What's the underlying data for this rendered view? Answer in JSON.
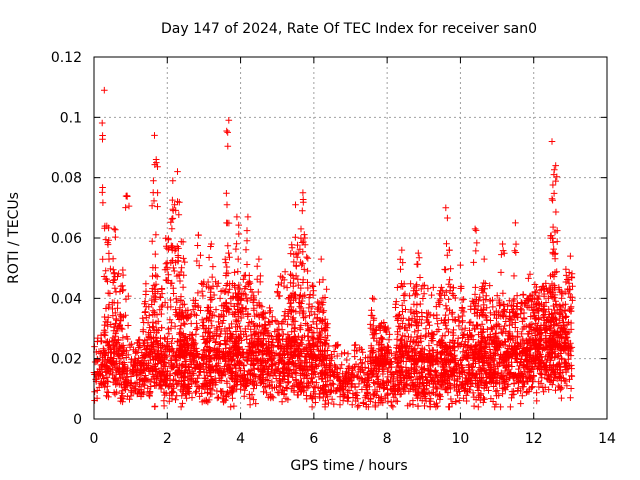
{
  "chart_data": {
    "type": "scatter",
    "title": "Day 147 of 2024, Rate Of TEC Index for receiver san0",
    "xlabel": "GPS time / hours",
    "ylabel": "ROTI / TECUs",
    "xlim": [
      0,
      14
    ],
    "ylim": [
      0,
      0.12
    ],
    "xticks": [
      "0",
      "2",
      "4",
      "6",
      "8",
      "10",
      "12",
      "14"
    ],
    "yticks": [
      "0",
      "0.02",
      "0.04",
      "0.06",
      "0.08",
      "0.1",
      "0.12"
    ],
    "grid": true,
    "marker": "+",
    "color": "#ff0000",
    "data_range_hours": [
      0,
      13.05
    ],
    "baseline_profile": [
      [
        0.0,
        0.015
      ],
      [
        0.5,
        0.016
      ],
      [
        1.0,
        0.014
      ],
      [
        1.5,
        0.015
      ],
      [
        2.0,
        0.014
      ],
      [
        2.5,
        0.015
      ],
      [
        3.0,
        0.014
      ],
      [
        3.5,
        0.014
      ],
      [
        4.0,
        0.015
      ],
      [
        4.5,
        0.016
      ],
      [
        5.0,
        0.015
      ],
      [
        5.5,
        0.015
      ],
      [
        6.0,
        0.014
      ],
      [
        6.5,
        0.013
      ],
      [
        7.0,
        0.012
      ],
      [
        7.5,
        0.012
      ],
      [
        8.0,
        0.012
      ],
      [
        8.5,
        0.013
      ],
      [
        9.0,
        0.013
      ],
      [
        9.5,
        0.013
      ],
      [
        10.0,
        0.014
      ],
      [
        10.5,
        0.014
      ],
      [
        11.0,
        0.014
      ],
      [
        11.5,
        0.015
      ],
      [
        12.0,
        0.017
      ],
      [
        12.5,
        0.018
      ],
      [
        13.05,
        0.017
      ]
    ],
    "peaks": [
      {
        "x": 0.28,
        "y": 0.109
      },
      {
        "x": 0.35,
        "y": 0.064
      },
      {
        "x": 0.55,
        "y": 0.063
      },
      {
        "x": 0.9,
        "y": 0.074
      },
      {
        "x": 1.65,
        "y": 0.094
      },
      {
        "x": 1.7,
        "y": 0.085
      },
      {
        "x": 1.62,
        "y": 0.079
      },
      {
        "x": 2.15,
        "y": 0.079
      },
      {
        "x": 2.28,
        "y": 0.082
      },
      {
        "x": 2.2,
        "y": 0.071
      },
      {
        "x": 2.85,
        "y": 0.061
      },
      {
        "x": 3.2,
        "y": 0.058
      },
      {
        "x": 3.68,
        "y": 0.099
      },
      {
        "x": 3.65,
        "y": 0.095
      },
      {
        "x": 3.62,
        "y": 0.065
      },
      {
        "x": 3.9,
        "y": 0.067
      },
      {
        "x": 4.2,
        "y": 0.067
      },
      {
        "x": 4.5,
        "y": 0.053
      },
      {
        "x": 5.5,
        "y": 0.071
      },
      {
        "x": 5.7,
        "y": 0.075
      },
      {
        "x": 5.65,
        "y": 0.063
      },
      {
        "x": 6.2,
        "y": 0.053
      },
      {
        "x": 7.6,
        "y": 0.04
      },
      {
        "x": 8.4,
        "y": 0.056
      },
      {
        "x": 8.85,
        "y": 0.055
      },
      {
        "x": 9.6,
        "y": 0.07
      },
      {
        "x": 9.7,
        "y": 0.056
      },
      {
        "x": 10.0,
        "y": 0.051
      },
      {
        "x": 10.4,
        "y": 0.063
      },
      {
        "x": 10.65,
        "y": 0.053
      },
      {
        "x": 11.15,
        "y": 0.058
      },
      {
        "x": 11.5,
        "y": 0.065
      },
      {
        "x": 11.9,
        "y": 0.048
      },
      {
        "x": 12.5,
        "y": 0.092
      },
      {
        "x": 12.6,
        "y": 0.084
      },
      {
        "x": 12.55,
        "y": 0.081
      },
      {
        "x": 12.5,
        "y": 0.073
      },
      {
        "x": 12.58,
        "y": 0.062
      },
      {
        "x": 13.0,
        "y": 0.054
      }
    ],
    "activity_bursts": [
      {
        "x": 0.55,
        "ymax": 0.05
      },
      {
        "x": 1.6,
        "ymax": 0.045
      },
      {
        "x": 2.2,
        "ymax": 0.06
      },
      {
        "x": 2.6,
        "ymax": 0.04
      },
      {
        "x": 3.2,
        "ymax": 0.046
      },
      {
        "x": 3.75,
        "ymax": 0.045
      },
      {
        "x": 4.1,
        "ymax": 0.05
      },
      {
        "x": 4.6,
        "ymax": 0.038
      },
      {
        "x": 5.2,
        "ymax": 0.05
      },
      {
        "x": 5.6,
        "ymax": 0.06
      },
      {
        "x": 6.1,
        "ymax": 0.045
      },
      {
        "x": 7.8,
        "ymax": 0.032
      },
      {
        "x": 8.5,
        "ymax": 0.045
      },
      {
        "x": 9.0,
        "ymax": 0.045
      },
      {
        "x": 9.6,
        "ymax": 0.045
      },
      {
        "x": 10.3,
        "ymax": 0.04
      },
      {
        "x": 10.8,
        "ymax": 0.045
      },
      {
        "x": 11.3,
        "ymax": 0.04
      },
      {
        "x": 11.9,
        "ymax": 0.042
      },
      {
        "x": 12.3,
        "ymax": 0.045
      },
      {
        "x": 12.6,
        "ymax": 0.045
      },
      {
        "x": 13.0,
        "ymax": 0.05
      }
    ]
  }
}
